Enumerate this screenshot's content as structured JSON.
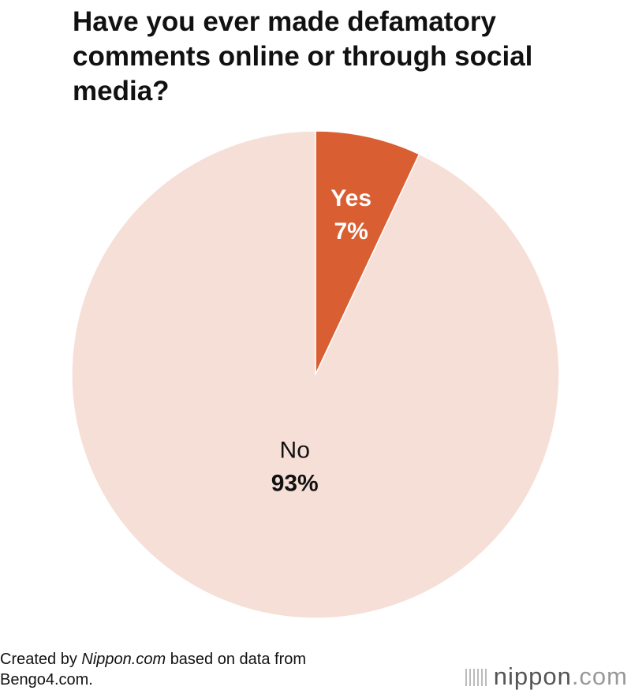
{
  "chart_data": {
    "type": "pie",
    "title": "Have you ever made defamatory comments online or through social media?",
    "categories": [
      "Yes",
      "No"
    ],
    "values": [
      7,
      93
    ],
    "value_labels": [
      "7%",
      "93%"
    ],
    "colors": [
      "#d95f33",
      "#f6dfd6"
    ],
    "start_angle": 0,
    "direction": "clockwise"
  },
  "source": {
    "prefix": "Created by",
    "emphasis": "Nippon.com",
    "suffix": "based on data from Bengo4.com."
  },
  "logo": {
    "name": "nippon",
    "suffix": ".com"
  }
}
